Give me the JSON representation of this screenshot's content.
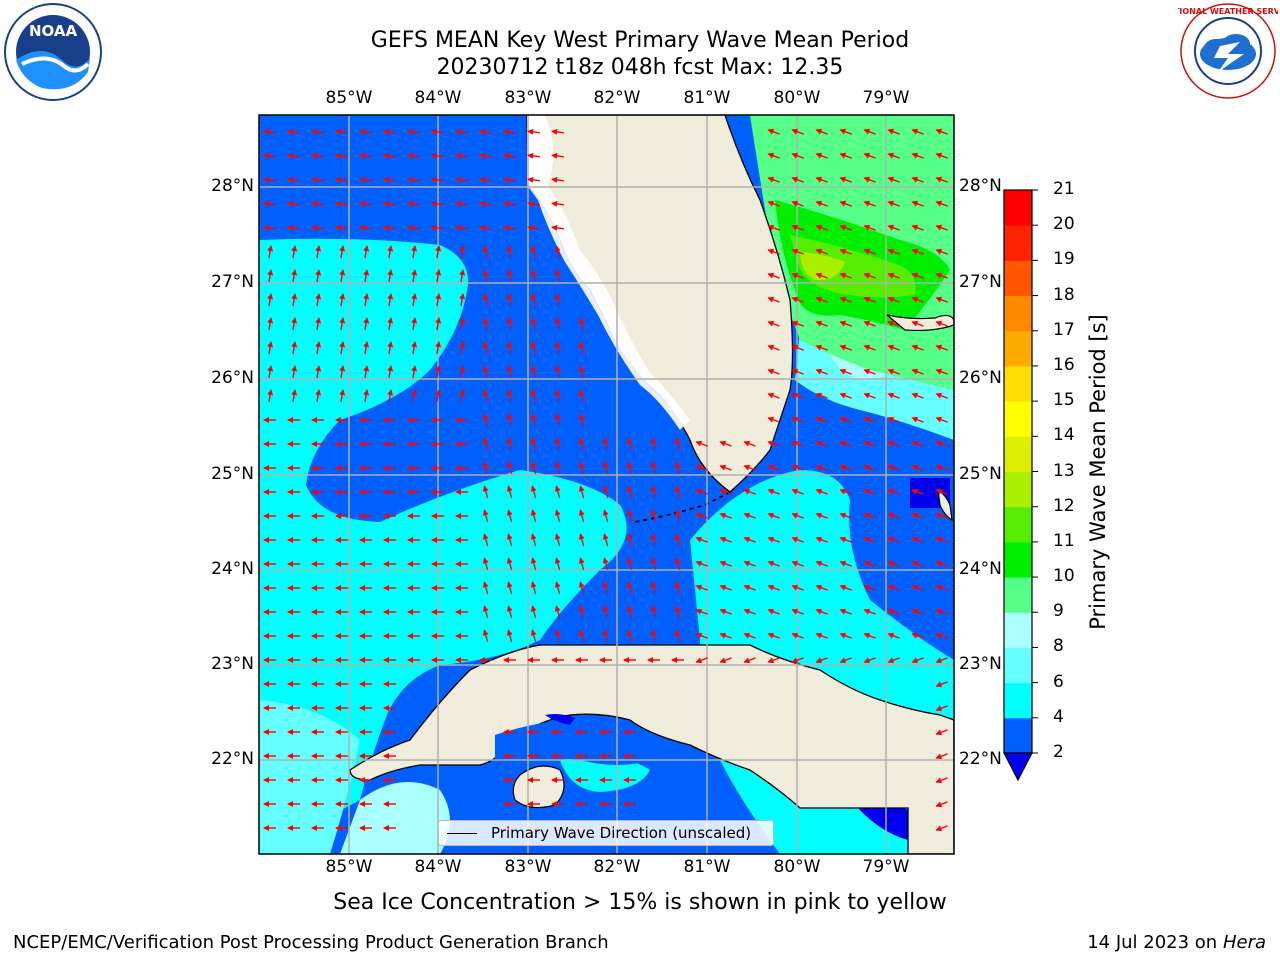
{
  "header": {
    "title_line1": "GEFS MEAN Key West Primary Wave Mean Period",
    "title_line2": "20230712 t18z 048h fcst   Max: 12.35"
  },
  "logos": {
    "left": {
      "name": "noaa-logo",
      "text": "NOAA"
    },
    "right": {
      "name": "national-weather-service-logo",
      "text": "NATIONAL WEATHER SERVICE"
    }
  },
  "map": {
    "lon_labels": [
      "85°W",
      "84°W",
      "83°W",
      "82°W",
      "81°W",
      "80°W",
      "79°W"
    ],
    "lat_labels": [
      "28°N",
      "27°N",
      "26°N",
      "25°N",
      "24°N",
      "23°N",
      "22°N"
    ],
    "legend_label": "Primary Wave Direction (unscaled)"
  },
  "colorbar": {
    "label": "Primary Wave Mean Period [s]",
    "ticks": [
      "2",
      "4",
      "6",
      "8",
      "9",
      "10",
      "11",
      "12",
      "13",
      "14",
      "15",
      "16",
      "17",
      "18",
      "19",
      "20",
      "21"
    ],
    "colors": [
      "#0060ff",
      "#00ffff",
      "#66ffff",
      "#aaffff",
      "#55ff88",
      "#00ee00",
      "#55ee00",
      "#aaee00",
      "#ddee00",
      "#ffff00",
      "#ffdd00",
      "#ffaa00",
      "#ff8800",
      "#ff5500",
      "#ff2200",
      "#ff0000"
    ],
    "under_color": "#0000ee"
  },
  "caption": "Sea Ice Concentration > 15% is shown in pink to yellow",
  "footer": {
    "left": "NCEP/EMC/Verification Post Processing Product Generation Branch",
    "right_prefix": "14 Jul 2023 on ",
    "right_host": "Hera"
  }
}
